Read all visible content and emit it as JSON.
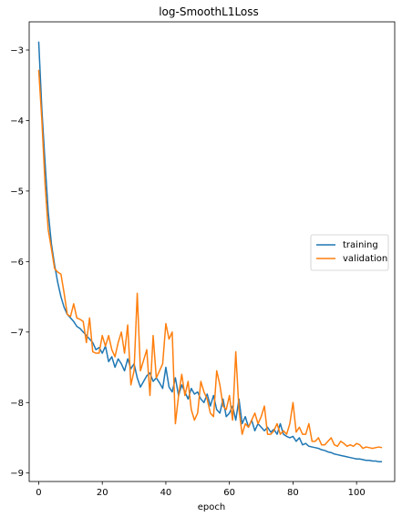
{
  "chart_data": {
    "type": "line",
    "title": "log-SmoothL1Loss",
    "xlabel": "epoch",
    "ylabel": "",
    "xlim": [
      -3,
      112
    ],
    "ylim": [
      -9.12,
      -2.6
    ],
    "xticks": [
      0,
      20,
      40,
      60,
      80,
      100
    ],
    "yticks": [
      -3,
      -4,
      -5,
      -6,
      -7,
      -8,
      -9
    ],
    "xtick_labels": [
      "0",
      "20",
      "40",
      "60",
      "80",
      "100"
    ],
    "ytick_labels": [
      "−3",
      "−4",
      "−5",
      "−6",
      "−7",
      "−8",
      "−9"
    ],
    "grid": false,
    "legend_position": "center-right",
    "series": [
      {
        "name": "training",
        "color": "#1f77b4",
        "x": [
          0,
          1,
          2,
          3,
          4,
          5,
          6,
          7,
          8,
          9,
          10,
          11,
          12,
          13,
          14,
          15,
          16,
          17,
          18,
          19,
          20,
          21,
          22,
          23,
          24,
          25,
          26,
          27,
          28,
          29,
          30,
          31,
          32,
          33,
          34,
          35,
          36,
          37,
          38,
          39,
          40,
          41,
          42,
          43,
          44,
          45,
          46,
          47,
          48,
          49,
          50,
          51,
          52,
          53,
          54,
          55,
          56,
          57,
          58,
          59,
          60,
          61,
          62,
          63,
          64,
          65,
          66,
          67,
          68,
          69,
          70,
          71,
          72,
          73,
          74,
          75,
          76,
          77,
          78,
          79,
          80,
          81,
          82,
          83,
          84,
          85,
          86,
          87,
          88,
          89,
          90,
          91,
          92,
          93,
          94,
          95,
          96,
          97,
          98,
          99,
          100,
          101,
          102,
          103,
          104,
          105,
          106,
          107,
          108
        ],
        "values": [
          -2.88,
          -3.85,
          -4.6,
          -5.3,
          -5.75,
          -6.05,
          -6.3,
          -6.5,
          -6.65,
          -6.75,
          -6.8,
          -6.85,
          -6.92,
          -6.95,
          -7.0,
          -7.05,
          -7.1,
          -7.15,
          -7.25,
          -7.22,
          -7.3,
          -7.2,
          -7.42,
          -7.35,
          -7.5,
          -7.38,
          -7.45,
          -7.55,
          -7.38,
          -7.52,
          -7.45,
          -7.65,
          -7.78,
          -7.7,
          -7.62,
          -7.58,
          -7.7,
          -7.65,
          -7.72,
          -7.8,
          -7.5,
          -7.78,
          -7.85,
          -7.65,
          -7.9,
          -7.75,
          -7.85,
          -7.95,
          -7.8,
          -7.88,
          -7.85,
          -7.95,
          -8.0,
          -7.88,
          -8.05,
          -7.9,
          -8.1,
          -8.15,
          -7.95,
          -8.2,
          -8.15,
          -8.05,
          -8.25,
          -7.95,
          -8.3,
          -8.2,
          -8.35,
          -8.25,
          -8.4,
          -8.3,
          -8.35,
          -8.4,
          -8.35,
          -8.42,
          -8.38,
          -8.45,
          -8.3,
          -8.45,
          -8.48,
          -8.5,
          -8.48,
          -8.55,
          -8.5,
          -8.6,
          -8.58,
          -8.62,
          -8.63,
          -8.64,
          -8.65,
          -8.67,
          -8.68,
          -8.7,
          -8.71,
          -8.73,
          -8.74,
          -8.75,
          -8.76,
          -8.77,
          -8.78,
          -8.79,
          -8.8,
          -8.8,
          -8.81,
          -8.82,
          -8.82,
          -8.83,
          -8.83,
          -8.84,
          -8.84
        ]
      },
      {
        "name": "validation",
        "color": "#ff7f0e",
        "x": [
          0,
          1,
          2,
          3,
          4,
          5,
          6,
          7,
          8,
          9,
          10,
          11,
          12,
          13,
          14,
          15,
          16,
          17,
          18,
          19,
          20,
          21,
          22,
          23,
          24,
          25,
          26,
          27,
          28,
          29,
          30,
          31,
          32,
          33,
          34,
          35,
          36,
          37,
          38,
          39,
          40,
          41,
          42,
          43,
          44,
          45,
          46,
          47,
          48,
          49,
          50,
          51,
          52,
          53,
          54,
          55,
          56,
          57,
          58,
          59,
          60,
          61,
          62,
          63,
          64,
          65,
          66,
          67,
          68,
          69,
          70,
          71,
          72,
          73,
          74,
          75,
          76,
          77,
          78,
          79,
          80,
          81,
          82,
          83,
          84,
          85,
          86,
          87,
          88,
          89,
          90,
          91,
          92,
          93,
          94,
          95,
          96,
          97,
          98,
          99,
          100,
          101,
          102,
          103,
          104,
          105,
          106,
          107,
          108
        ],
        "values": [
          -3.28,
          -4.0,
          -4.9,
          -5.55,
          -5.82,
          -6.1,
          -6.15,
          -6.18,
          -6.45,
          -6.75,
          -6.78,
          -6.6,
          -6.8,
          -6.82,
          -6.85,
          -7.15,
          -6.8,
          -7.28,
          -7.3,
          -7.3,
          -7.05,
          -7.2,
          -7.05,
          -7.25,
          -7.35,
          -7.15,
          -7.0,
          -7.3,
          -6.9,
          -7.75,
          -7.55,
          -6.45,
          -7.55,
          -7.4,
          -7.25,
          -7.9,
          -7.05,
          -7.65,
          -7.55,
          -7.45,
          -6.88,
          -7.1,
          -7.0,
          -8.3,
          -7.9,
          -7.6,
          -7.9,
          -7.7,
          -8.1,
          -8.25,
          -8.15,
          -7.7,
          -7.85,
          -7.95,
          -8.15,
          -8.2,
          -7.55,
          -7.75,
          -8.05,
          -8.1,
          -7.9,
          -8.25,
          -7.28,
          -8.1,
          -8.45,
          -8.3,
          -8.35,
          -8.25,
          -8.15,
          -8.3,
          -8.2,
          -8.05,
          -8.45,
          -8.45,
          -8.4,
          -8.3,
          -8.45,
          -8.4,
          -8.45,
          -8.3,
          -8.0,
          -8.42,
          -8.35,
          -8.45,
          -8.45,
          -8.3,
          -8.55,
          -8.55,
          -8.5,
          -8.6,
          -8.6,
          -8.55,
          -8.5,
          -8.6,
          -8.62,
          -8.55,
          -8.58,
          -8.62,
          -8.6,
          -8.62,
          -8.58,
          -8.6,
          -8.65,
          -8.63,
          -8.64,
          -8.65,
          -8.64,
          -8.63,
          -8.64
        ]
      }
    ]
  }
}
